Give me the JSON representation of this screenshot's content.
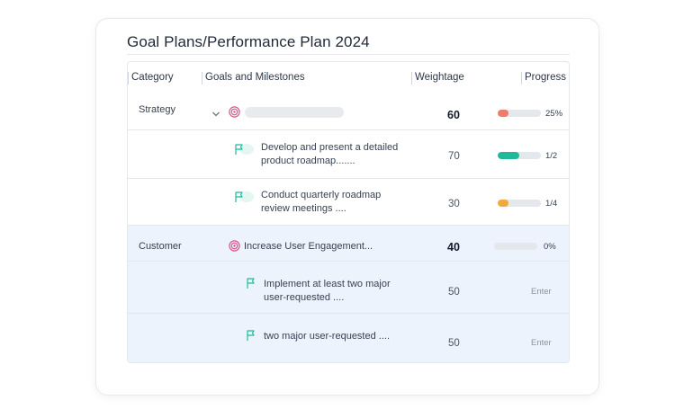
{
  "page": {
    "title": "Goal Plans/Performance Plan 2024"
  },
  "table": {
    "headers": {
      "category": "Category",
      "goals": "Goals and Milestones",
      "weightage": "Weightage",
      "progress": "Progress"
    },
    "groups": [
      {
        "category": "Strategy",
        "goal": {
          "title": "",
          "weightage": "60",
          "progress_label": "25%",
          "progress_fraction": 0.25,
          "progress_color": "#ef7b6a"
        },
        "milestones": [
          {
            "line1": "Develop and present a detailed",
            "line2": "product roadmap.......",
            "weightage": "70",
            "progress_label": "1/2",
            "progress_fraction": 0.5,
            "progress_color": "#1fb99a"
          },
          {
            "line1": "Conduct quarterly roadmap",
            "line2": "review meetings ....",
            "weightage": "30",
            "progress_label": "1/4",
            "progress_fraction": 0.25,
            "progress_color": "#f2a93b"
          }
        ]
      },
      {
        "category": "Customer",
        "goal": {
          "title": "Increase User Engagement...",
          "weightage": "40",
          "progress_label": "0%",
          "progress_fraction": 0
        },
        "milestones": [
          {
            "line1": "Implement at least two major",
            "line2": "user-requested ....",
            "weightage": "50",
            "action": "Enter"
          },
          {
            "line1": "two major user-requested ....",
            "line2": "",
            "weightage": "50",
            "action": "Enter"
          }
        ]
      }
    ]
  },
  "icons": {
    "goal": "target-icon",
    "milestone": "flag-icon",
    "expand": "chevron-down-icon"
  },
  "colors": {
    "goal_icon": "#e0528a",
    "milestone_icon": "#1fb99a",
    "row_highlight": "#edf3fd",
    "border": "#e3e7ee"
  }
}
